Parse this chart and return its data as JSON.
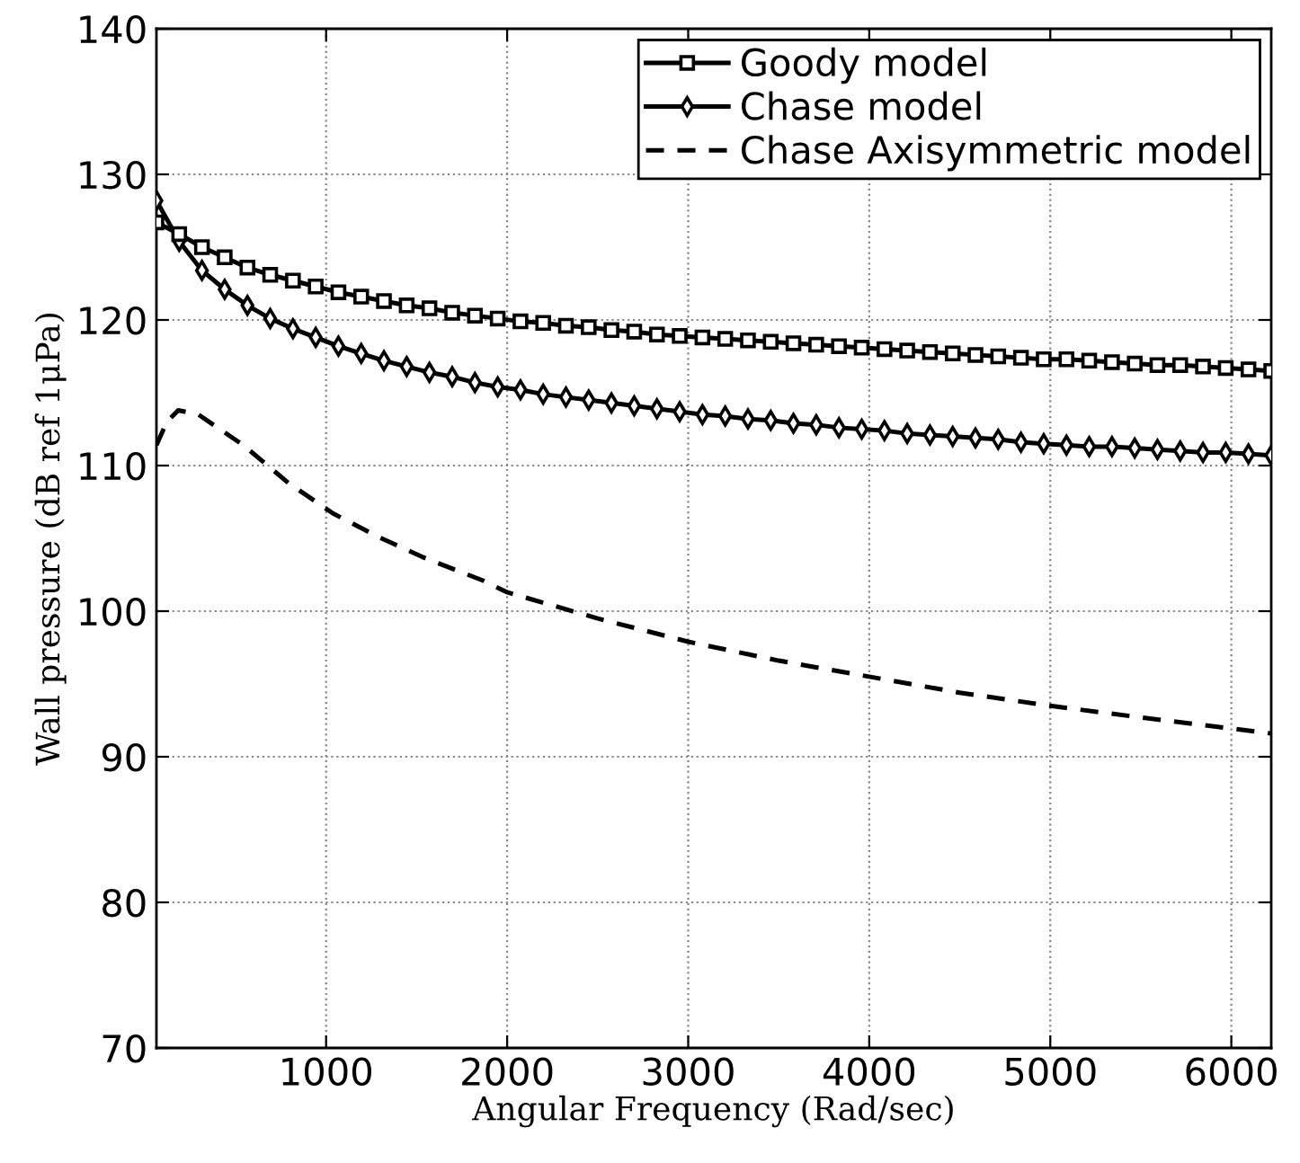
{
  "chart_data": {
    "type": "line",
    "xlabel": "Angular Frequency (Rad/sec)",
    "ylabel": "Wall pressure (dB ref 1μPa)",
    "xlim": [
      62.8,
      6220.4
    ],
    "ylim": [
      70,
      140
    ],
    "xticks": [
      1000,
      2000,
      3000,
      4000,
      5000,
      6000
    ],
    "yticks": [
      70,
      80,
      90,
      100,
      110,
      120,
      130,
      140
    ],
    "grid": true,
    "legend": "top right",
    "series": [
      {
        "name": "Goody model",
        "color": "#000000",
        "marker": "square",
        "line_style": "solid",
        "x": [
          62.8,
          188.5,
          314.2,
          439.8,
          565.5,
          691.2,
          816.8,
          942.5,
          1068.1,
          1193.8,
          1319.5,
          1445.1,
          1570.8,
          1696.5,
          1822.1,
          1947.8,
          2073.5,
          2199.1,
          2324.8,
          2450.4,
          2576.1,
          2701.8,
          2827.4,
          2953.1,
          3078.8,
          3204.4,
          3330.1,
          3455.8,
          3581.4,
          3707.1,
          3832.7,
          3958.4,
          4084.1,
          4209.7,
          4335.4,
          4461.1,
          4586.7,
          4712.4,
          4838.1,
          4963.7,
          5089.4,
          5215.0,
          5340.7,
          5466.4,
          5592.0,
          5717.7,
          5843.4,
          5969.0,
          6094.7,
          6220.4
        ],
        "values": [
          126.7,
          125.9,
          125.0,
          124.3,
          123.6,
          123.1,
          122.7,
          122.3,
          121.9,
          121.6,
          121.3,
          121.0,
          120.8,
          120.5,
          120.3,
          120.1,
          119.9,
          119.8,
          119.6,
          119.5,
          119.3,
          119.2,
          119.0,
          118.9,
          118.8,
          118.7,
          118.6,
          118.5,
          118.4,
          118.3,
          118.2,
          118.1,
          118.0,
          117.9,
          117.8,
          117.7,
          117.6,
          117.5,
          117.4,
          117.3,
          117.3,
          117.2,
          117.1,
          117.0,
          116.9,
          116.9,
          116.8,
          116.7,
          116.6,
          116.5
        ]
      },
      {
        "name": "Chase model",
        "color": "#000000",
        "marker": "diamond",
        "line_style": "solid",
        "x": [
          62.8,
          188.5,
          314.2,
          439.8,
          565.5,
          691.2,
          816.8,
          942.5,
          1068.1,
          1193.8,
          1319.5,
          1445.1,
          1570.8,
          1696.5,
          1822.1,
          1947.8,
          2073.5,
          2199.1,
          2324.8,
          2450.4,
          2576.1,
          2701.8,
          2827.4,
          2953.1,
          3078.8,
          3204.4,
          3330.1,
          3455.8,
          3581.4,
          3707.1,
          3832.7,
          3958.4,
          4084.1,
          4209.7,
          4335.4,
          4461.1,
          4586.7,
          4712.4,
          4838.1,
          4963.7,
          5089.4,
          5215.0,
          5340.7,
          5466.4,
          5592.0,
          5717.7,
          5843.4,
          5969.0,
          6094.7,
          6220.4
        ],
        "values": [
          128.2,
          125.4,
          123.4,
          122.1,
          121.0,
          120.1,
          119.4,
          118.8,
          118.2,
          117.7,
          117.2,
          116.8,
          116.4,
          116.1,
          115.7,
          115.4,
          115.2,
          114.9,
          114.7,
          114.5,
          114.3,
          114.1,
          113.9,
          113.7,
          113.5,
          113.4,
          113.2,
          113.1,
          112.9,
          112.8,
          112.6,
          112.5,
          112.4,
          112.2,
          112.1,
          112.0,
          111.9,
          111.8,
          111.6,
          111.5,
          111.4,
          111.3,
          111.3,
          111.2,
          111.1,
          111.0,
          110.9,
          110.9,
          110.8,
          110.7
        ]
      },
      {
        "name": "Chase Axisymmetric model",
        "color": "#000000",
        "marker": "none",
        "line_style": "dashed",
        "x": [
          63,
          120,
          183,
          295,
          543,
          792,
          1040,
          1288,
          1536,
          1867,
          2000,
          2500,
          3000,
          3500,
          4000,
          4500,
          5000,
          5500,
          6220
        ],
        "values": [
          111.4,
          113.0,
          113.8,
          113.5,
          111.4,
          108.8,
          106.7,
          105.1,
          103.7,
          102.1,
          101.3,
          99.5,
          97.9,
          96.6,
          95.5,
          94.4,
          93.5,
          92.7,
          91.6
        ]
      }
    ]
  }
}
